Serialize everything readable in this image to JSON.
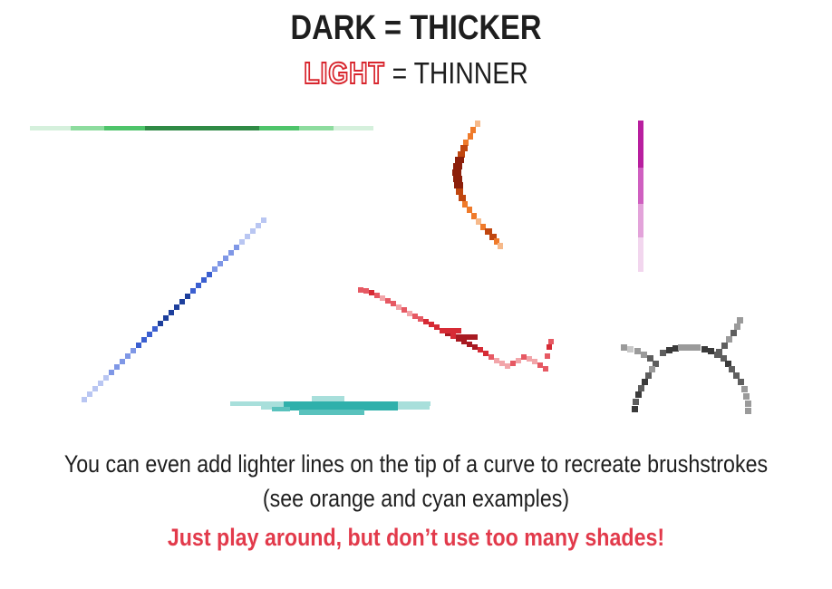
{
  "header": {
    "dark_word": "DARK",
    "equals": "=",
    "thicker_word": "THICKER",
    "light_word": "LIGHT",
    "thinner_word": "THINNER"
  },
  "captions": {
    "line1": "You can even add lighter lines on the tip of a curve to recreate brushstrokes",
    "line2": "(see orange and cyan examples)",
    "line3": "Just play around, but don’t use too many shades!"
  },
  "colors": {
    "green": [
      "#d5f0dc",
      "#8ddc9e",
      "#4ec46a",
      "#2f8a45"
    ],
    "blue": [
      "#b9c6f2",
      "#7f97e6",
      "#3b5fd0",
      "#1d3f9c"
    ],
    "cyan": [
      "#a8dfdb",
      "#59c2bd",
      "#2fb0ab"
    ],
    "red": [
      "#f2a5a9",
      "#e65963",
      "#d62b35",
      "#a81a22"
    ],
    "orange": [
      "#f6b98a",
      "#ef7a2a",
      "#c0460f",
      "#8c1f0a"
    ],
    "magenta": [
      "#f2d6ee",
      "#e3a3da",
      "#cf5fc0",
      "#b81f9f"
    ],
    "gray": [
      "#c8c8c8",
      "#9a9a9a",
      "#5e5e5e",
      "#3a3a3a"
    ],
    "accent_red": "#d8262e",
    "caption_red": "#e23a4b"
  }
}
